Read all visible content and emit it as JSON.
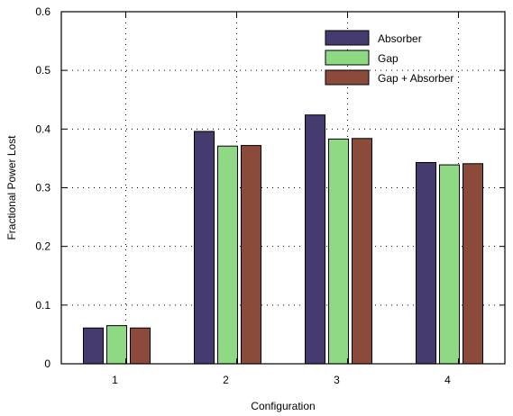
{
  "chart_data": {
    "type": "bar",
    "xlabel": "Configuration",
    "ylabel": "Fractional Power Lost",
    "categories": [
      "1",
      "2",
      "3",
      "4"
    ],
    "ylim": [
      0,
      0.6
    ],
    "yticks": [
      "0",
      "0.1",
      "0.2",
      "0.3",
      "0.4",
      "0.5",
      "0.6"
    ],
    "grid": true,
    "legend_position": "top-right",
    "series": [
      {
        "name": "Absorber",
        "color": "#463b6e",
        "values": [
          0.061,
          0.396,
          0.424,
          0.343
        ]
      },
      {
        "name": "Gap",
        "color": "#8fd985",
        "values": [
          0.065,
          0.371,
          0.383,
          0.339
        ]
      },
      {
        "name": "Gap + Absorber",
        "color": "#8c4a3b",
        "values": [
          0.061,
          0.372,
          0.384,
          0.341
        ]
      }
    ]
  }
}
